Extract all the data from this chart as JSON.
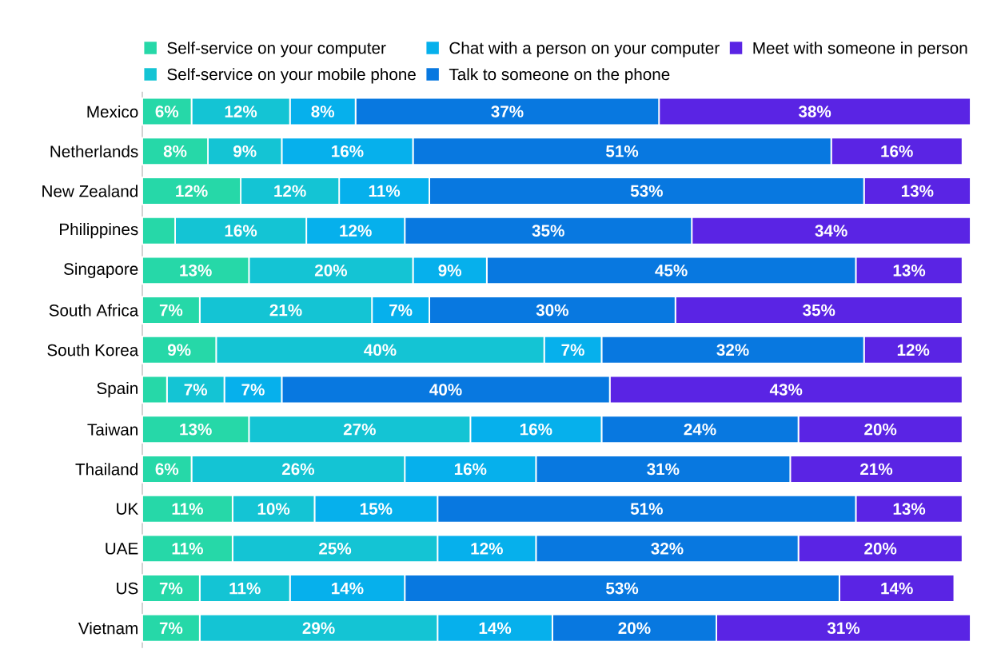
{
  "chart_data": {
    "type": "bar",
    "orientation": "horizontal",
    "stacked": true,
    "categories": [
      "Mexico",
      "Netherlands",
      "New Zealand",
      "Philippines",
      "Singapore",
      "South Africa",
      "South Korea",
      "Spain",
      "Taiwan",
      "Thailand",
      "UK",
      "UAE",
      "US",
      "Vietnam"
    ],
    "tick_labels": "y",
    "legend": "top",
    "grid": false,
    "series": [
      {
        "name": "Self-service on your computer",
        "color": "#26d8a8",
        "values": [
          6,
          8,
          12,
          4,
          13,
          7,
          9,
          3,
          13,
          6,
          11,
          11,
          7,
          7
        ],
        "value_labels": [
          "6%",
          "8%",
          "12%",
          null,
          "13%",
          "7%",
          "9%",
          null,
          "13%",
          "6%",
          "11%",
          "11%",
          "7%",
          "7%"
        ]
      },
      {
        "name": "Self-service on your mobile phone",
        "color": "#14c4d4",
        "values": [
          12,
          9,
          12,
          16,
          20,
          21,
          40,
          7,
          27,
          26,
          10,
          25,
          11,
          29
        ],
        "value_labels": [
          "12%",
          "9%",
          "12%",
          "16%",
          "20%",
          "21%",
          "40%",
          "7%",
          "27%",
          "26%",
          "10%",
          "25%",
          "11%",
          "29%"
        ]
      },
      {
        "name": "Chat with a person on your computer",
        "color": "#06b0ec",
        "values": [
          8,
          16,
          11,
          12,
          9,
          7,
          7,
          7,
          16,
          16,
          15,
          12,
          14,
          14
        ],
        "value_labels": [
          "8%",
          "16%",
          "11%",
          "12%",
          "9%",
          "7%",
          "7%",
          "7%",
          "16%",
          "16%",
          "15%",
          "12%",
          "14%",
          "14%"
        ]
      },
      {
        "name": "Talk to someone on the phone",
        "color": "#0878e0",
        "values": [
          37,
          51,
          53,
          35,
          45,
          30,
          32,
          40,
          24,
          31,
          51,
          32,
          53,
          20
        ],
        "value_labels": [
          "37%",
          "51%",
          "53%",
          "35%",
          "45%",
          "30%",
          "32%",
          "40%",
          "24%",
          "31%",
          "51%",
          "32%",
          "53%",
          "20%"
        ]
      },
      {
        "name": "Meet with someone in person",
        "color": "#5a24e4",
        "values": [
          38,
          16,
          13,
          34,
          13,
          35,
          12,
          43,
          20,
          21,
          13,
          20,
          14,
          31
        ],
        "value_labels": [
          "38%",
          "16%",
          "13%",
          "34%",
          "13%",
          "35%",
          "12%",
          "43%",
          "20%",
          "21%",
          "13%",
          "20%",
          "14%",
          "31%"
        ]
      }
    ]
  }
}
